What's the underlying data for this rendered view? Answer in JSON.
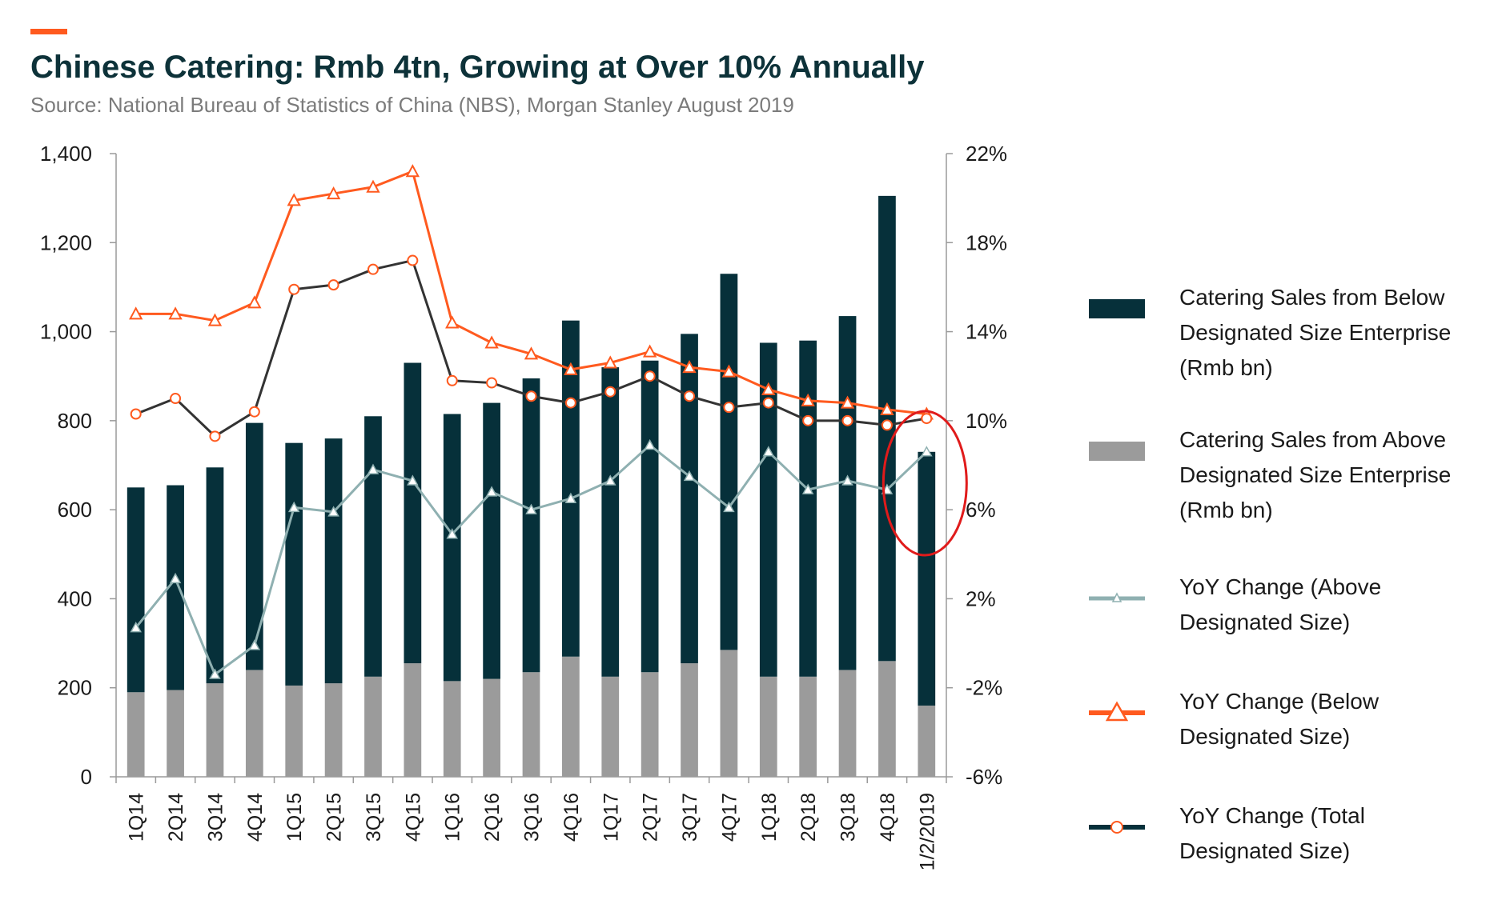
{
  "header": {
    "title": "Chinese Catering: Rmb 4tn, Growing at Over 10% Annually",
    "subtitle": "Source: National Bureau of Statistics of China (NBS), Morgan Stanley August 2019"
  },
  "colors": {
    "accent": "#ff5a1f",
    "below_bar": "#06303a",
    "above_bar": "#9b9b9b",
    "yoy_above": "#8fb0b1",
    "yoy_below": "#ff5a1f",
    "yoy_total": "#333333",
    "highlight_circle": "#e01b1b"
  },
  "legend": [
    {
      "label": "Catering Sales from Below Designated Size Enterprise (Rmb bn)",
      "marker": "bar",
      "color": "#06303a"
    },
    {
      "label": "Catering Sales from Above Designated Size Enterprise (Rmb bn)",
      "marker": "bar",
      "color": "#9b9b9b"
    },
    {
      "label": "YoY Change (Above Designated Size)",
      "marker": "line-triangle",
      "color": "#8fb0b1"
    },
    {
      "label": "YoY Change (Below Designated Size)",
      "marker": "line-triangle",
      "color": "#ff5a1f"
    },
    {
      "label": "YoY Change (Total Designated Size)",
      "marker": "line-circle",
      "color": "#06303a"
    }
  ],
  "chart_data": {
    "type": "bar",
    "stacked": true,
    "categories": [
      "1Q14",
      "2Q14",
      "3Q14",
      "4Q14",
      "1Q15",
      "2Q15",
      "3Q15",
      "4Q15",
      "1Q16",
      "2Q16",
      "3Q16",
      "4Q16",
      "1Q17",
      "2Q17",
      "3Q17",
      "4Q17",
      "1Q18",
      "2Q18",
      "3Q18",
      "4Q18",
      "1/2/2019"
    ],
    "left_axis": {
      "min": 0,
      "max": 1400,
      "ticks": [
        "0",
        "200",
        "400",
        "600",
        "800",
        "1,000",
        "1,200",
        "1,400"
      ]
    },
    "right_axis": {
      "min": -6,
      "max": 22,
      "ticks": [
        "-6%",
        "-2%",
        "2%",
        "6%",
        "10%",
        "14%",
        "18%",
        "22%"
      ]
    },
    "series": [
      {
        "name": "Catering Sales from Above Designated Size Enterprise (Rmb bn)",
        "type": "bar",
        "axis": "left",
        "values": [
          190,
          195,
          210,
          240,
          205,
          210,
          225,
          255,
          215,
          220,
          235,
          270,
          225,
          235,
          255,
          285,
          225,
          225,
          240,
          260,
          160
        ]
      },
      {
        "name": "Catering Sales from Below Designated Size Enterprise (Rmb bn)",
        "type": "bar",
        "axis": "left",
        "values": [
          460,
          460,
          485,
          555,
          545,
          550,
          585,
          675,
          600,
          620,
          660,
          755,
          695,
          700,
          740,
          845,
          750,
          755,
          795,
          1045,
          570
        ]
      },
      {
        "name": "YoY Change (Above Designated Size)",
        "type": "line",
        "axis": "right",
        "values": [
          0.7,
          2.9,
          -1.4,
          -0.1,
          6.1,
          5.9,
          7.8,
          7.3,
          4.9,
          6.8,
          6.0,
          6.5,
          7.3,
          8.9,
          7.5,
          6.1,
          8.6,
          6.9,
          7.3,
          6.9,
          8.6
        ]
      },
      {
        "name": "YoY Change (Below Designated Size)",
        "type": "line",
        "axis": "right",
        "values": [
          14.8,
          14.8,
          14.5,
          15.3,
          19.9,
          20.2,
          20.5,
          21.2,
          14.4,
          13.5,
          13.0,
          12.3,
          12.6,
          13.1,
          12.4,
          12.2,
          11.4,
          10.9,
          10.8,
          10.5,
          10.3
        ]
      },
      {
        "name": "YoY Change (Total Designated Size)",
        "type": "line",
        "axis": "right",
        "values": [
          10.3,
          11.0,
          9.3,
          10.4,
          15.9,
          16.1,
          16.8,
          17.2,
          11.8,
          11.7,
          11.1,
          10.8,
          11.3,
          12.0,
          11.1,
          10.6,
          10.8,
          10.0,
          10.0,
          9.8,
          10.1
        ]
      }
    ],
    "annotation": "circle highlighting latest period (1/2/2019)",
    "grid": false
  }
}
